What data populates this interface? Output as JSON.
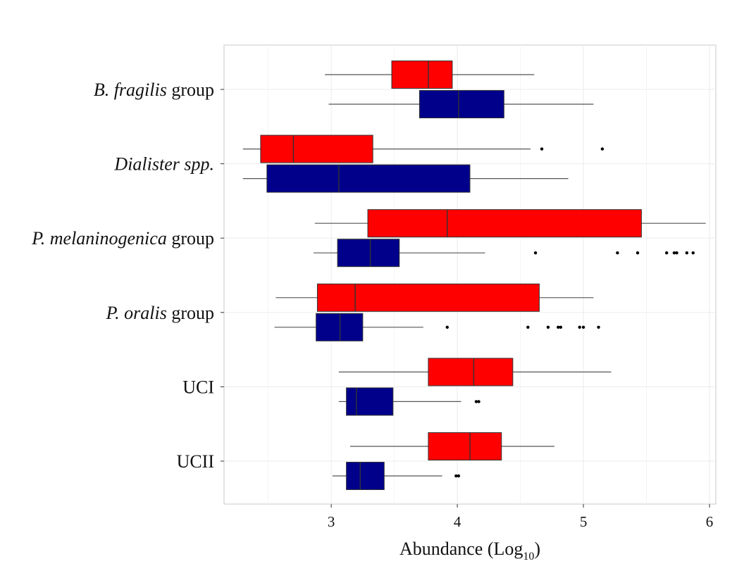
{
  "chart_data": {
    "type": "box",
    "orientation": "horizontal",
    "title": "",
    "xlabel": "Abundance (Log",
    "xlabel_subscript": "10",
    "xlabel_close": ")",
    "ylabel": "",
    "xlim": [
      2.15,
      6.05
    ],
    "xticks": [
      "3",
      "4",
      "5",
      "6"
    ],
    "grid": true,
    "legend": "none",
    "colors": {
      "red_series": "#ff0000",
      "blue_series": "#00008b",
      "outlier": "#000000",
      "border": "#333333"
    },
    "categories": [
      {
        "label_parts": [
          {
            "text": "B. fragilis",
            "italic": true
          },
          {
            "text": " group",
            "italic": false
          }
        ]
      },
      {
        "label_parts": [
          {
            "text": "Dialister spp.",
            "italic": true
          }
        ]
      },
      {
        "label_parts": [
          {
            "text": "P. melaninogenica",
            "italic": true
          },
          {
            "text": " group",
            "italic": false
          }
        ]
      },
      {
        "label_parts": [
          {
            "text": "P. oralis",
            "italic": true
          },
          {
            "text": " group",
            "italic": false
          }
        ]
      },
      {
        "label_parts": [
          {
            "text": "UCI",
            "italic": false
          }
        ]
      },
      {
        "label_parts": [
          {
            "text": "UCII",
            "italic": false
          }
        ]
      }
    ],
    "series": [
      {
        "color": "#ff0000",
        "boxes": [
          {
            "whisker_low": 2.95,
            "q1": 3.48,
            "median": 3.77,
            "q3": 3.96,
            "whisker_high": 4.61,
            "outliers": []
          },
          {
            "whisker_low": 2.3,
            "q1": 2.44,
            "median": 2.7,
            "q3": 3.33,
            "whisker_high": 4.58,
            "outliers": [
              4.67,
              5.15
            ]
          },
          {
            "whisker_low": 2.87,
            "q1": 3.29,
            "median": 3.92,
            "q3": 5.46,
            "whisker_high": 5.97,
            "outliers": []
          },
          {
            "whisker_low": 2.56,
            "q1": 2.89,
            "median": 3.19,
            "q3": 4.65,
            "whisker_high": 5.08,
            "outliers": []
          },
          {
            "whisker_low": 3.06,
            "q1": 3.77,
            "median": 4.13,
            "q3": 4.44,
            "whisker_high": 5.22,
            "outliers": []
          },
          {
            "whisker_low": 3.15,
            "q1": 3.77,
            "median": 4.1,
            "q3": 4.35,
            "whisker_high": 4.77,
            "outliers": []
          }
        ]
      },
      {
        "color": "#00008b",
        "boxes": [
          {
            "whisker_low": 2.98,
            "q1": 3.7,
            "median": 4.01,
            "q3": 4.37,
            "whisker_high": 5.08,
            "outliers": []
          },
          {
            "whisker_low": 2.3,
            "q1": 2.49,
            "median": 3.06,
            "q3": 4.1,
            "whisker_high": 4.88,
            "outliers": []
          },
          {
            "whisker_low": 2.86,
            "q1": 3.05,
            "median": 3.31,
            "q3": 3.54,
            "whisker_high": 4.22,
            "outliers": [
              4.62,
              5.27,
              5.43,
              5.66,
              5.72,
              5.74,
              5.82,
              5.87
            ]
          },
          {
            "whisker_low": 2.55,
            "q1": 2.88,
            "median": 3.07,
            "q3": 3.25,
            "whisker_high": 3.73,
            "outliers": [
              3.92,
              4.56,
              4.72,
              4.8,
              4.82,
              4.97,
              5.0,
              5.12
            ]
          },
          {
            "whisker_low": 3.06,
            "q1": 3.12,
            "median": 3.2,
            "q3": 3.49,
            "whisker_high": 4.03,
            "outliers": [
              4.15,
              4.17
            ]
          },
          {
            "whisker_low": 3.01,
            "q1": 3.12,
            "median": 3.23,
            "q3": 3.42,
            "whisker_high": 3.88,
            "outliers": [
              3.99,
              4.01
            ]
          }
        ]
      }
    ]
  }
}
